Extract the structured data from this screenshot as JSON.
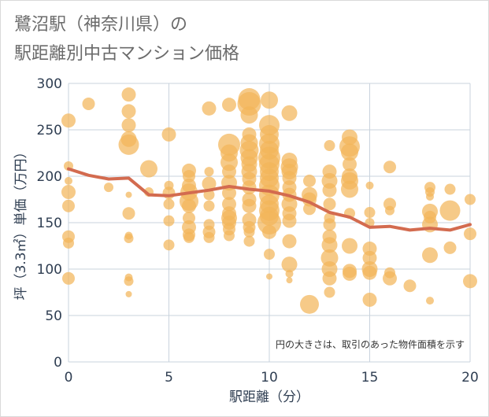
{
  "chart_data": {
    "type": "scatter",
    "title_line1": "鷺沼駅（神奈川県）の",
    "title_line2": "駅距離別中古マンション価格",
    "xlabel": "駅距離（分）",
    "ylabel": "坪（3.3㎡）単価（万円）",
    "note": "円の大きさは、取引のあった物件面積を示す",
    "xlim": [
      0,
      20
    ],
    "ylim": [
      0,
      300
    ],
    "xticks": [
      0,
      5,
      10,
      15,
      20
    ],
    "yticks": [
      0,
      50,
      100,
      150,
      200,
      250,
      300
    ],
    "colors": {
      "bubble": "#f2b65a",
      "line": "#d36b4f",
      "grid": "#c9d3dd"
    },
    "trend_line": {
      "x": [
        0,
        1,
        2,
        3,
        4,
        5,
        6,
        7,
        8,
        9,
        10,
        11,
        12,
        13,
        14,
        15,
        16,
        17,
        18,
        19,
        20
      ],
      "y": [
        208,
        201,
        197,
        198,
        180,
        179,
        182,
        185,
        189,
        186,
        184,
        179,
        172,
        161,
        156,
        145,
        146,
        142,
        144,
        142,
        148
      ]
    },
    "points": [
      {
        "x": 0,
        "y": 260,
        "s": 9
      },
      {
        "x": 0,
        "y": 211,
        "s": 6
      },
      {
        "x": 0,
        "y": 195,
        "s": 5
      },
      {
        "x": 0,
        "y": 183,
        "s": 9
      },
      {
        "x": 0,
        "y": 168,
        "s": 8
      },
      {
        "x": 0,
        "y": 135,
        "s": 8
      },
      {
        "x": 0,
        "y": 128,
        "s": 7
      },
      {
        "x": 0,
        "y": 90,
        "s": 8
      },
      {
        "x": 1,
        "y": 278,
        "s": 8
      },
      {
        "x": 2,
        "y": 188,
        "s": 6
      },
      {
        "x": 3,
        "y": 288,
        "s": 9
      },
      {
        "x": 3,
        "y": 270,
        "s": 9
      },
      {
        "x": 3,
        "y": 255,
        "s": 9
      },
      {
        "x": 3,
        "y": 240,
        "s": 10
      },
      {
        "x": 3,
        "y": 234,
        "s": 13
      },
      {
        "x": 3,
        "y": 180,
        "s": 4
      },
      {
        "x": 3,
        "y": 160,
        "s": 8
      },
      {
        "x": 3,
        "y": 136,
        "s": 5
      },
      {
        "x": 3,
        "y": 133,
        "s": 6
      },
      {
        "x": 3,
        "y": 91,
        "s": 5
      },
      {
        "x": 3,
        "y": 87,
        "s": 6
      },
      {
        "x": 3,
        "y": 73,
        "s": 4
      },
      {
        "x": 4,
        "y": 208,
        "s": 11
      },
      {
        "x": 4,
        "y": 183,
        "s": 6
      },
      {
        "x": 5,
        "y": 245,
        "s": 9
      },
      {
        "x": 5,
        "y": 190,
        "s": 6
      },
      {
        "x": 5,
        "y": 182,
        "s": 8
      },
      {
        "x": 5,
        "y": 170,
        "s": 7
      },
      {
        "x": 5,
        "y": 152,
        "s": 7
      },
      {
        "x": 5,
        "y": 126,
        "s": 7
      },
      {
        "x": 6,
        "y": 206,
        "s": 9
      },
      {
        "x": 6,
        "y": 200,
        "s": 8
      },
      {
        "x": 6,
        "y": 190,
        "s": 9
      },
      {
        "x": 6,
        "y": 183,
        "s": 11
      },
      {
        "x": 6,
        "y": 173,
        "s": 12
      },
      {
        "x": 6,
        "y": 168,
        "s": 9
      },
      {
        "x": 6,
        "y": 155,
        "s": 8
      },
      {
        "x": 6,
        "y": 145,
        "s": 9
      },
      {
        "x": 6,
        "y": 137,
        "s": 8
      },
      {
        "x": 6,
        "y": 134,
        "s": 7
      },
      {
        "x": 7,
        "y": 273,
        "s": 9
      },
      {
        "x": 7,
        "y": 205,
        "s": 6
      },
      {
        "x": 7,
        "y": 192,
        "s": 9
      },
      {
        "x": 7,
        "y": 180,
        "s": 7
      },
      {
        "x": 7,
        "y": 168,
        "s": 7
      },
      {
        "x": 7,
        "y": 148,
        "s": 7
      },
      {
        "x": 7,
        "y": 140,
        "s": 8
      },
      {
        "x": 7,
        "y": 134,
        "s": 7
      },
      {
        "x": 8,
        "y": 277,
        "s": 9
      },
      {
        "x": 8,
        "y": 234,
        "s": 14
      },
      {
        "x": 8,
        "y": 225,
        "s": 11
      },
      {
        "x": 8,
        "y": 215,
        "s": 11
      },
      {
        "x": 8,
        "y": 205,
        "s": 9
      },
      {
        "x": 8,
        "y": 193,
        "s": 10
      },
      {
        "x": 8,
        "y": 182,
        "s": 9
      },
      {
        "x": 8,
        "y": 170,
        "s": 9
      },
      {
        "x": 8,
        "y": 160,
        "s": 9
      },
      {
        "x": 8,
        "y": 155,
        "s": 10
      },
      {
        "x": 8,
        "y": 150,
        "s": 9
      },
      {
        "x": 8,
        "y": 143,
        "s": 8
      },
      {
        "x": 8,
        "y": 136,
        "s": 7
      },
      {
        "x": 9,
        "y": 283,
        "s": 14
      },
      {
        "x": 9,
        "y": 278,
        "s": 15
      },
      {
        "x": 9,
        "y": 266,
        "s": 11
      },
      {
        "x": 9,
        "y": 245,
        "s": 9
      },
      {
        "x": 9,
        "y": 236,
        "s": 11
      },
      {
        "x": 9,
        "y": 228,
        "s": 12
      },
      {
        "x": 9,
        "y": 220,
        "s": 11
      },
      {
        "x": 9,
        "y": 213,
        "s": 10
      },
      {
        "x": 9,
        "y": 205,
        "s": 10
      },
      {
        "x": 9,
        "y": 197,
        "s": 9
      },
      {
        "x": 9,
        "y": 188,
        "s": 9
      },
      {
        "x": 9,
        "y": 175,
        "s": 9
      },
      {
        "x": 9,
        "y": 168,
        "s": 9
      },
      {
        "x": 9,
        "y": 153,
        "s": 9
      },
      {
        "x": 9,
        "y": 145,
        "s": 8
      },
      {
        "x": 9,
        "y": 140,
        "s": 7
      },
      {
        "x": 9,
        "y": 130,
        "s": 7
      },
      {
        "x": 10,
        "y": 282,
        "s": 11
      },
      {
        "x": 10,
        "y": 255,
        "s": 13
      },
      {
        "x": 10,
        "y": 245,
        "s": 12
      },
      {
        "x": 10,
        "y": 235,
        "s": 13
      },
      {
        "x": 10,
        "y": 228,
        "s": 12
      },
      {
        "x": 10,
        "y": 220,
        "s": 14
      },
      {
        "x": 10,
        "y": 213,
        "s": 13
      },
      {
        "x": 10,
        "y": 205,
        "s": 12
      },
      {
        "x": 10,
        "y": 198,
        "s": 12
      },
      {
        "x": 10,
        "y": 190,
        "s": 13
      },
      {
        "x": 10,
        "y": 180,
        "s": 13
      },
      {
        "x": 10,
        "y": 170,
        "s": 12
      },
      {
        "x": 10,
        "y": 163,
        "s": 13
      },
      {
        "x": 10,
        "y": 157,
        "s": 12
      },
      {
        "x": 10,
        "y": 150,
        "s": 15
      },
      {
        "x": 10,
        "y": 140,
        "s": 9
      },
      {
        "x": 10,
        "y": 116,
        "s": 7
      },
      {
        "x": 10,
        "y": 92,
        "s": 4
      },
      {
        "x": 11,
        "y": 268,
        "s": 10
      },
      {
        "x": 11,
        "y": 217,
        "s": 10
      },
      {
        "x": 11,
        "y": 210,
        "s": 11
      },
      {
        "x": 11,
        "y": 205,
        "s": 10
      },
      {
        "x": 11,
        "y": 198,
        "s": 9
      },
      {
        "x": 11,
        "y": 188,
        "s": 9
      },
      {
        "x": 11,
        "y": 180,
        "s": 9
      },
      {
        "x": 11,
        "y": 170,
        "s": 10
      },
      {
        "x": 11,
        "y": 160,
        "s": 9
      },
      {
        "x": 11,
        "y": 152,
        "s": 9
      },
      {
        "x": 11,
        "y": 130,
        "s": 9
      },
      {
        "x": 11,
        "y": 105,
        "s": 10
      },
      {
        "x": 11,
        "y": 95,
        "s": 5
      },
      {
        "x": 11,
        "y": 88,
        "s": 4
      },
      {
        "x": 12,
        "y": 195,
        "s": 8
      },
      {
        "x": 12,
        "y": 180,
        "s": 10
      },
      {
        "x": 12,
        "y": 175,
        "s": 9
      },
      {
        "x": 12,
        "y": 165,
        "s": 8
      },
      {
        "x": 12,
        "y": 62,
        "s": 12
      },
      {
        "x": 13,
        "y": 233,
        "s": 7
      },
      {
        "x": 13,
        "y": 205,
        "s": 9
      },
      {
        "x": 13,
        "y": 195,
        "s": 10
      },
      {
        "x": 13,
        "y": 185,
        "s": 9
      },
      {
        "x": 13,
        "y": 170,
        "s": 8
      },
      {
        "x": 13,
        "y": 155,
        "s": 7
      },
      {
        "x": 13,
        "y": 148,
        "s": 8
      },
      {
        "x": 13,
        "y": 135,
        "s": 9
      },
      {
        "x": 13,
        "y": 126,
        "s": 10
      },
      {
        "x": 13,
        "y": 112,
        "s": 11
      },
      {
        "x": 13,
        "y": 100,
        "s": 10
      },
      {
        "x": 13,
        "y": 90,
        "s": 9
      },
      {
        "x": 13,
        "y": 75,
        "s": 7
      },
      {
        "x": 14,
        "y": 242,
        "s": 10
      },
      {
        "x": 14,
        "y": 232,
        "s": 13
      },
      {
        "x": 14,
        "y": 226,
        "s": 11
      },
      {
        "x": 14,
        "y": 213,
        "s": 9
      },
      {
        "x": 14,
        "y": 200,
        "s": 10
      },
      {
        "x": 14,
        "y": 195,
        "s": 11
      },
      {
        "x": 14,
        "y": 186,
        "s": 11
      },
      {
        "x": 14,
        "y": 160,
        "s": 7
      },
      {
        "x": 14,
        "y": 125,
        "s": 10
      },
      {
        "x": 14,
        "y": 98,
        "s": 9
      },
      {
        "x": 14,
        "y": 95,
        "s": 9
      },
      {
        "x": 15,
        "y": 190,
        "s": 5
      },
      {
        "x": 15,
        "y": 161,
        "s": 7
      },
      {
        "x": 15,
        "y": 150,
        "s": 6
      },
      {
        "x": 15,
        "y": 122,
        "s": 9
      },
      {
        "x": 15,
        "y": 112,
        "s": 9
      },
      {
        "x": 15,
        "y": 100,
        "s": 10
      },
      {
        "x": 15,
        "y": 96,
        "s": 9
      },
      {
        "x": 15,
        "y": 67,
        "s": 9
      },
      {
        "x": 16,
        "y": 210,
        "s": 8
      },
      {
        "x": 16,
        "y": 170,
        "s": 8
      },
      {
        "x": 16,
        "y": 163,
        "s": 6
      },
      {
        "x": 16,
        "y": 96,
        "s": 7
      },
      {
        "x": 16,
        "y": 90,
        "s": 9
      },
      {
        "x": 17,
        "y": 82,
        "s": 8
      },
      {
        "x": 18,
        "y": 188,
        "s": 7
      },
      {
        "x": 18,
        "y": 183,
        "s": 6
      },
      {
        "x": 18,
        "y": 178,
        "s": 5
      },
      {
        "x": 18,
        "y": 162,
        "s": 10
      },
      {
        "x": 18,
        "y": 156,
        "s": 8
      },
      {
        "x": 18,
        "y": 148,
        "s": 10
      },
      {
        "x": 18,
        "y": 115,
        "s": 10
      },
      {
        "x": 18,
        "y": 66,
        "s": 5
      },
      {
        "x": 19,
        "y": 186,
        "s": 7
      },
      {
        "x": 19,
        "y": 163,
        "s": 13
      },
      {
        "x": 19,
        "y": 123,
        "s": 8
      },
      {
        "x": 20,
        "y": 175,
        "s": 7
      },
      {
        "x": 20,
        "y": 138,
        "s": 8
      },
      {
        "x": 20,
        "y": 87,
        "s": 9
      }
    ]
  }
}
